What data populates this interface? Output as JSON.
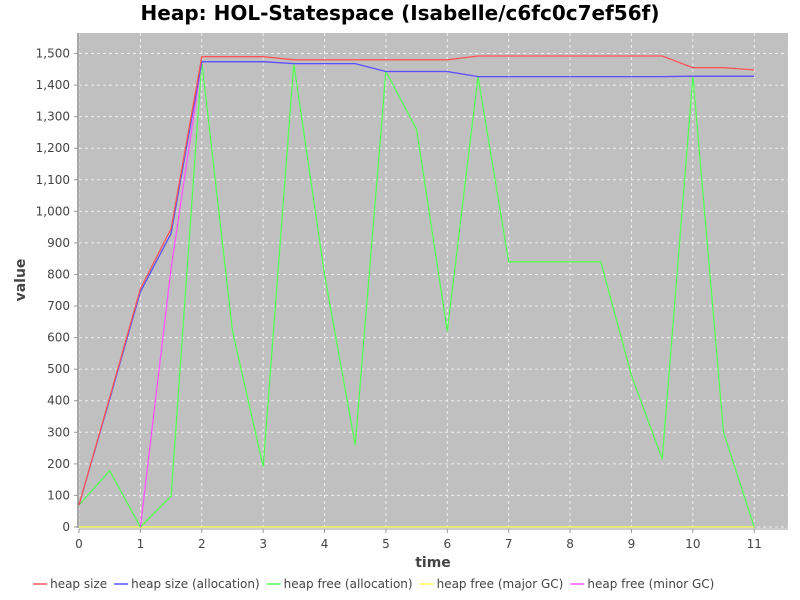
{
  "chart_data": {
    "type": "line",
    "title": "Heap: HOL-Statespace (Isabelle/c6fc0c7ef56f)",
    "xlabel": "time",
    "ylabel": "value",
    "xlim": [
      0,
      11.55
    ],
    "ylim": [
      0,
      1565
    ],
    "xticks": [
      0,
      1,
      2,
      3,
      4,
      5,
      6,
      7,
      8,
      9,
      10,
      11
    ],
    "yticks": [
      0,
      100,
      200,
      300,
      400,
      500,
      600,
      700,
      800,
      900,
      1000,
      1100,
      1200,
      1300,
      1400,
      1500
    ],
    "ytick_labels": [
      "0",
      "100",
      "200",
      "300",
      "400",
      "500",
      "600",
      "700",
      "800",
      "900",
      "1,000",
      "1,100",
      "1,200",
      "1,300",
      "1,400",
      "1,500"
    ],
    "grid": true,
    "legend_position": "bottom",
    "background": "#c0c0c0",
    "x": [
      0,
      0.5,
      1,
      1.5,
      2,
      2.5,
      3,
      3.5,
      4,
      4.5,
      5,
      5.5,
      6,
      6.5,
      7,
      7.5,
      8,
      8.5,
      9,
      9.5,
      10,
      10.5,
      11
    ],
    "series": [
      {
        "name": "heap size",
        "color": "#ff5555",
        "values": [
          70,
          410,
          755,
          945,
          1490,
          1490,
          1490,
          1480,
          1480,
          1480,
          1480,
          1480,
          1480,
          1492,
          1492,
          1492,
          1492,
          1492,
          1492,
          1492,
          1455,
          1455,
          1448
        ]
      },
      {
        "name": "heap size (allocation)",
        "color": "#5555ff",
        "values": [
          70,
          405,
          745,
          930,
          1474,
          1474,
          1474,
          1468,
          1468,
          1468,
          1443,
          1443,
          1443,
          1427,
          1427,
          1427,
          1427,
          1427,
          1427,
          1427,
          1428,
          1428,
          1428
        ]
      },
      {
        "name": "heap free (allocation)",
        "color": "#55ff55",
        "values": [
          70,
          178,
          0,
          98,
          1474,
          620,
          191,
          1468,
          800,
          260,
          1443,
          1260,
          620,
          1427,
          840,
          840,
          840,
          840,
          480,
          215,
          1428,
          300,
          0
        ]
      },
      {
        "name": "heap free (major GC)",
        "color": "#ffff55",
        "values": [
          0,
          0,
          0,
          0,
          0,
          0,
          0,
          0,
          0,
          0,
          0,
          0,
          0,
          0,
          0,
          0,
          0,
          0,
          0,
          0,
          0,
          0,
          0
        ]
      },
      {
        "name": "heap free (minor GC)",
        "color": "#ff55ff",
        "values": [
          null,
          null,
          0,
          820,
          1474,
          1474,
          1474,
          1468,
          1468,
          1468,
          1443,
          1443,
          1443,
          1427,
          1427,
          1427,
          1427,
          1427,
          1427,
          1427,
          1428,
          1428,
          1428
        ]
      }
    ]
  }
}
